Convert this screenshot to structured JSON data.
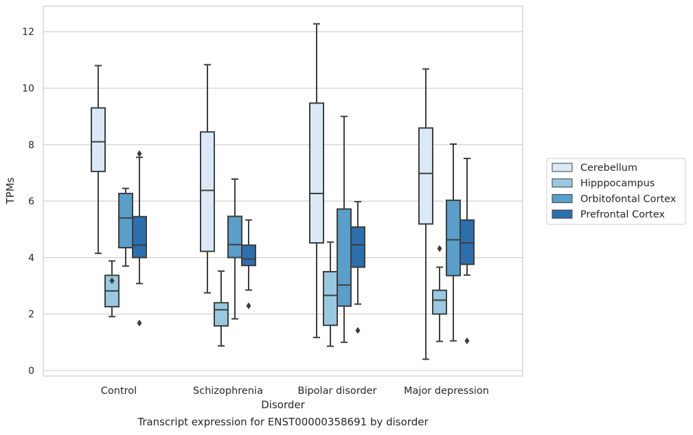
{
  "chart_data": {
    "type": "box",
    "xlabel": "Disorder",
    "ylabel": "TPMs",
    "ylim": [
      -0.2,
      12.85
    ],
    "yticks": [
      0,
      2,
      4,
      6,
      8,
      10,
      12
    ],
    "grid": true,
    "legend_position": "right",
    "categories": [
      "Control",
      "Schizophrenia",
      "Bipolar disorder",
      "Major depression"
    ],
    "series": [
      {
        "name": "Cerebellum",
        "color": "#dbe9f6",
        "boxes": [
          {
            "whisker_low": 4.15,
            "q1": 7.05,
            "median": 8.1,
            "q3": 9.3,
            "whisker_high": 10.8,
            "outliers": []
          },
          {
            "whisker_low": 2.75,
            "q1": 4.22,
            "median": 6.38,
            "q3": 8.45,
            "whisker_high": 10.83,
            "outliers": []
          },
          {
            "whisker_low": 1.17,
            "q1": 4.52,
            "median": 6.27,
            "q3": 9.47,
            "whisker_high": 12.28,
            "outliers": []
          },
          {
            "whisker_low": 0.4,
            "q1": 5.19,
            "median": 6.98,
            "q3": 8.59,
            "whisker_high": 10.68,
            "outliers": []
          }
        ]
      },
      {
        "name": "Hipppocampus",
        "color": "#9ac8e0",
        "boxes": [
          {
            "whisker_low": 1.91,
            "q1": 2.26,
            "median": 2.82,
            "q3": 3.37,
            "whisker_high": 3.88,
            "outliers": [
              3.18
            ]
          },
          {
            "whisker_low": 0.87,
            "q1": 1.58,
            "median": 2.15,
            "q3": 2.4,
            "whisker_high": 3.52,
            "outliers": []
          },
          {
            "whisker_low": 0.86,
            "q1": 1.6,
            "median": 2.66,
            "q3": 3.5,
            "whisker_high": 4.55,
            "outliers": []
          },
          {
            "whisker_low": 1.03,
            "q1": 2.0,
            "median": 2.49,
            "q3": 2.84,
            "whisker_high": 3.66,
            "outliers": [
              4.32
            ]
          }
        ]
      },
      {
        "name": "Orbitofontal Cortex",
        "color": "#5a9ec9",
        "boxes": [
          {
            "whisker_low": 3.7,
            "q1": 4.35,
            "median": 5.4,
            "q3": 6.27,
            "whisker_high": 6.45,
            "outliers": []
          },
          {
            "whisker_low": 1.83,
            "q1": 4.0,
            "median": 4.46,
            "q3": 5.46,
            "whisker_high": 6.78,
            "outliers": []
          },
          {
            "whisker_low": 1.0,
            "q1": 2.28,
            "median": 3.03,
            "q3": 5.72,
            "whisker_high": 9.0,
            "outliers": []
          },
          {
            "whisker_low": 1.05,
            "q1": 3.36,
            "median": 4.63,
            "q3": 6.03,
            "whisker_high": 8.02,
            "outliers": []
          }
        ]
      },
      {
        "name": "Prefrontal Cortex",
        "color": "#2d6fad",
        "boxes": [
          {
            "whisker_low": 3.08,
            "q1": 4.0,
            "median": 4.44,
            "q3": 5.45,
            "whisker_high": 7.55,
            "outliers": [
              7.68,
              1.68
            ]
          },
          {
            "whisker_low": 2.85,
            "q1": 3.72,
            "median": 3.95,
            "q3": 4.44,
            "whisker_high": 5.33,
            "outliers": [
              2.29
            ]
          },
          {
            "whisker_low": 2.35,
            "q1": 3.66,
            "median": 4.45,
            "q3": 5.08,
            "whisker_high": 5.98,
            "outliers": [
              1.42
            ]
          },
          {
            "whisker_low": 3.38,
            "q1": 3.76,
            "median": 4.52,
            "q3": 5.33,
            "whisker_high": 7.51,
            "outliers": [
              1.05
            ]
          }
        ]
      }
    ]
  },
  "figure": {
    "caption": "Transcript expression for ENST00000358691 by disorder"
  }
}
